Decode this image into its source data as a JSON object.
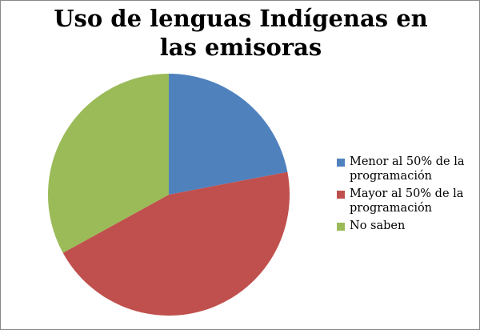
{
  "chart_data": {
    "type": "pie",
    "title": "Uso de lenguas Indígenas en las emisoras",
    "categories": [
      "Menor al 50% de la programación",
      "Mayor al 50% de la programación",
      "No saben"
    ],
    "values": [
      22,
      45,
      33
    ],
    "colors": [
      "#4f81bd",
      "#c0504d",
      "#9bbb59"
    ],
    "legend": "right"
  }
}
